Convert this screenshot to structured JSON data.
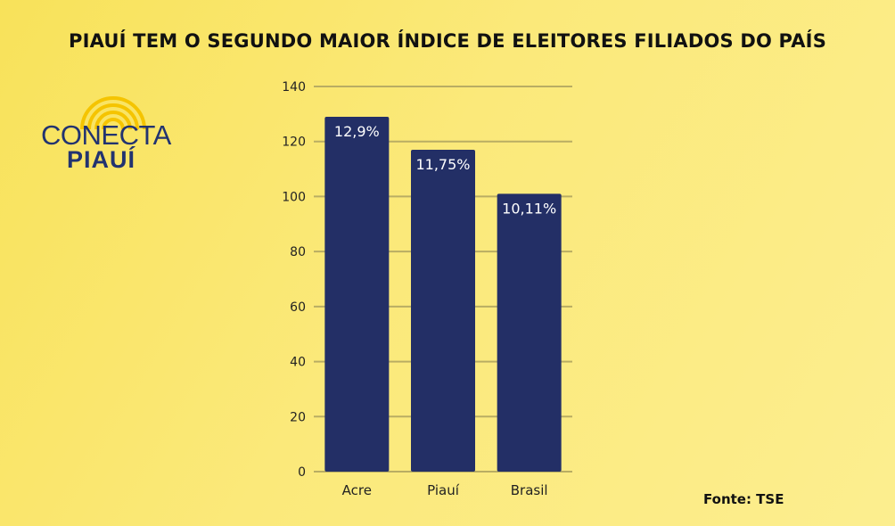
{
  "title": "PIAUÍ TEM O SEGUNDO MAIOR ÍNDICE DE ELEITORES FILIADOS DO PAÍS",
  "logo": {
    "line1": "CONECTA",
    "line2": "PIAUÍ",
    "icon": "sunburst-icon"
  },
  "source": "Fonte: TSE",
  "colors": {
    "bar": "#232f66",
    "grid": "#b9ad63",
    "logo": "#223370",
    "logo_rays": "#f5c400"
  },
  "chart_data": {
    "type": "bar",
    "title": "PIAUÍ TEM O SEGUNDO MAIOR ÍNDICE DE ELEITORES FILIADOS DO PAÍS",
    "categories": [
      "Acre",
      "Piauí",
      "Brasil"
    ],
    "values": [
      129,
      117,
      101
    ],
    "data_labels": [
      "12,9%",
      "11,75%",
      "10,11%"
    ],
    "xlabel": "",
    "ylabel": "",
    "ylim": [
      0,
      140
    ],
    "yticks": [
      0,
      20,
      40,
      60,
      80,
      100,
      120,
      140
    ],
    "grid": true,
    "legend": "none"
  }
}
